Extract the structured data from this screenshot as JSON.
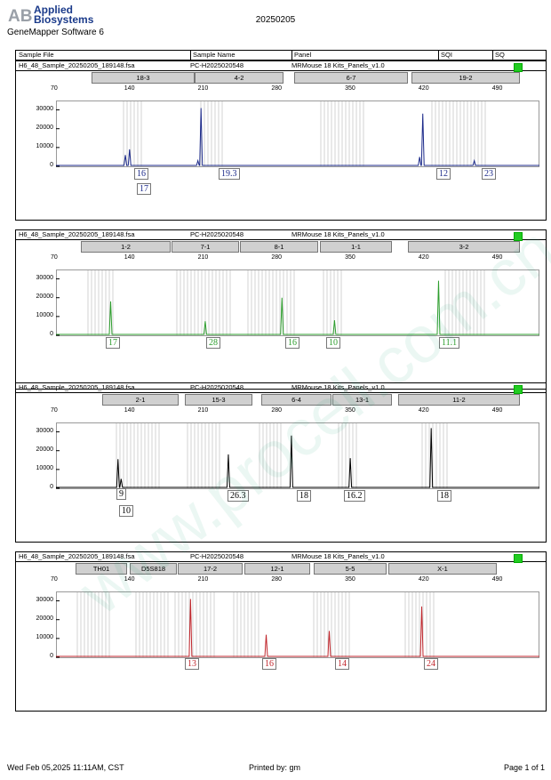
{
  "header": {
    "logo_abbrev": "AB",
    "logo_line1": "Applied",
    "logo_line2": "Biosystems",
    "software": "GeneMapper Software 6",
    "run_date": "20250205"
  },
  "columns": {
    "sample_file": "Sample File",
    "sample_name": "Sample Name",
    "panel": "Panel",
    "sqi": "SQI",
    "sq": "SQ"
  },
  "colors": {
    "blue": "#1c2a8a",
    "green": "#2e9e2e",
    "black": "#000000",
    "red": "#c0262c",
    "status": "#22cc22"
  },
  "panels": [
    {
      "sample_file": "H6_48_Sample_20250205_189148.fsa",
      "sample_name": "PC-H2025020548",
      "panel": "MRMouse 18 Kits_Panels_v1.0",
      "color": "blue",
      "loci": [
        "18-3",
        "4-2",
        "6-7",
        "19-2"
      ],
      "alleles": [
        "16",
        "17",
        "19.3",
        "12",
        "23"
      ]
    },
    {
      "sample_file": "H6_48_Sample_20250205_189148.fsa",
      "sample_name": "PC-H2025020548",
      "panel": "MRMouse 18 Kits_Panels_v1.0",
      "color": "green",
      "loci": [
        "1-2",
        "7-1",
        "8-1",
        "1-1",
        "3-2"
      ],
      "alleles": [
        "17",
        "28",
        "16",
        "10",
        "11.1"
      ]
    },
    {
      "sample_file": "H6_48_Sample_20250205_189148.fsa",
      "sample_name": "PC-H2025020548",
      "panel": "MRMouse 18 Kits_Panels_v1.0",
      "color": "black",
      "loci": [
        "2-1",
        "15-3",
        "6-4",
        "13-1",
        "11-2"
      ],
      "alleles": [
        "9",
        "10",
        "26.3",
        "18",
        "16.2",
        "18"
      ]
    },
    {
      "sample_file": "H6_48_Sample_20250205_189148.fsa",
      "sample_name": "PC-H2025020548",
      "panel": "MRMouse 18 Kits_Panels_v1.0",
      "color": "red",
      "loci": [
        "TH01",
        "D5S818",
        "17-2",
        "12-1",
        "5-5",
        "X-1"
      ],
      "alleles": [
        "13",
        "16",
        "14",
        "24"
      ]
    }
  ],
  "chart_data": [
    {
      "type": "line",
      "color": "blue",
      "xlim": [
        70,
        530
      ],
      "ylim": [
        0,
        35000
      ],
      "x_ticks": [
        "70",
        "140",
        "210",
        "280",
        "350",
        "420",
        "490"
      ],
      "y_ticks": [
        "30000",
        "20000",
        "10000",
        "0"
      ],
      "peaks": [
        {
          "x": 136,
          "y": 6000
        },
        {
          "x": 140,
          "y": 9000
        },
        {
          "x": 205,
          "y": 3000
        },
        {
          "x": 208,
          "y": 31000
        },
        {
          "x": 416,
          "y": 5000
        },
        {
          "x": 419,
          "y": 28000
        },
        {
          "x": 468,
          "y": 3000
        }
      ]
    },
    {
      "type": "line",
      "color": "green",
      "xlim": [
        70,
        530
      ],
      "ylim": [
        0,
        35000
      ],
      "x_ticks": [
        "70",
        "140",
        "210",
        "280",
        "350",
        "420",
        "490"
      ],
      "y_ticks": [
        "30000",
        "20000",
        "10000",
        "0"
      ],
      "peaks": [
        {
          "x": 122,
          "y": 18000
        },
        {
          "x": 212,
          "y": 7500
        },
        {
          "x": 285,
          "y": 20000
        },
        {
          "x": 335,
          "y": 8000
        },
        {
          "x": 434,
          "y": 29000
        }
      ]
    },
    {
      "type": "line",
      "color": "black",
      "xlim": [
        70,
        530
      ],
      "ylim": [
        0,
        35000
      ],
      "x_ticks": [
        "70",
        "140",
        "210",
        "280",
        "350",
        "420",
        "490"
      ],
      "y_ticks": [
        "30000",
        "20000",
        "10000",
        "0"
      ],
      "peaks": [
        {
          "x": 129,
          "y": 15500
        },
        {
          "x": 132,
          "y": 5000
        },
        {
          "x": 234,
          "y": 18000
        },
        {
          "x": 294,
          "y": 28000
        },
        {
          "x": 350,
          "y": 16000
        },
        {
          "x": 427,
          "y": 32000
        }
      ]
    },
    {
      "type": "line",
      "color": "red",
      "xlim": [
        70,
        530
      ],
      "ylim": [
        0,
        35000
      ],
      "x_ticks": [
        "70",
        "140",
        "210",
        "280",
        "350",
        "420",
        "490"
      ],
      "y_ticks": [
        "30000",
        "20000",
        "10000",
        "0"
      ],
      "peaks": [
        {
          "x": 198,
          "y": 31000
        },
        {
          "x": 270,
          "y": 12000
        },
        {
          "x": 330,
          "y": 14000
        },
        {
          "x": 418,
          "y": 27000
        }
      ]
    }
  ],
  "footer": {
    "left": "Wed Feb 05,2025 11:11AM, CST",
    "center": "Printed by: gm",
    "right": "Page 1 of 1"
  },
  "watermark": "www.procell.com.cn"
}
